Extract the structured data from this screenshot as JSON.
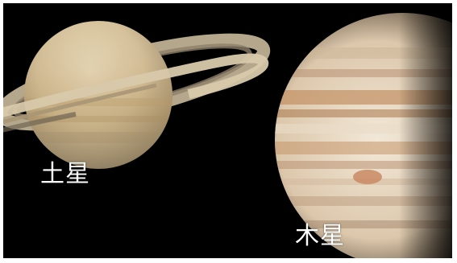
{
  "labels": {
    "saturn": "土星",
    "jupiter": "木星"
  },
  "colors": {
    "background": "#000000",
    "saturn_body": "#d9c7a2",
    "saturn_ring": "#cdbd9f",
    "jupiter_light": "#eee4d3",
    "jupiter_band": "#c99a6d"
  }
}
